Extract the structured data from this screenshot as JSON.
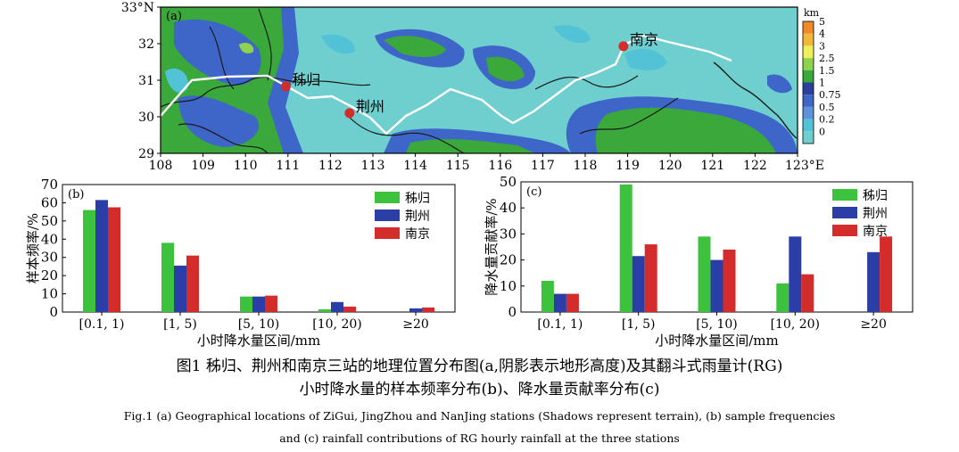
{
  "map": {
    "panel_label": "(a)",
    "lat_ticks": [
      "33°N",
      "32",
      "31",
      "30",
      "29"
    ],
    "lon_ticks": [
      "108",
      "109",
      "110",
      "111",
      "112",
      "113",
      "114",
      "115",
      "116",
      "117",
      "118",
      "119",
      "120",
      "121",
      "122",
      "123°E"
    ],
    "lon_range": [
      108,
      123
    ],
    "lat_range": [
      29,
      33
    ],
    "stations": [
      {
        "name": "秭归",
        "lon": 110.95,
        "lat": 30.83
      },
      {
        "name": "荆州",
        "lon": 112.45,
        "lat": 30.1
      },
      {
        "name": "南京",
        "lon": 118.9,
        "lat": 31.93
      }
    ],
    "colorbar": {
      "unit": "km",
      "levels": [
        "5",
        "4",
        "3",
        "2.5",
        "1.5",
        "1",
        "0.75",
        "0.5",
        "0.2",
        "0"
      ],
      "colors": [
        "#f08a28",
        "#f2b63a",
        "#eef05a",
        "#8ed34e",
        "#3aa83a",
        "#2c3f9c",
        "#3e66c8",
        "#5e93dc",
        "#52c3d6",
        "#6fcfcf"
      ]
    },
    "colors": {
      "water": "#6fcfcf",
      "low": "#52c3d6",
      "mid": "#3e66c8",
      "high": "#3aa83a",
      "peak": "#8ed34e",
      "station": "#d42b2b"
    }
  },
  "chart_data": [
    {
      "type": "bar",
      "panel_label": "(b)",
      "categories": [
        "[0.1, 1)",
        "[1, 5)",
        "[5, 10)",
        "[10, 20)",
        "≥20"
      ],
      "series": [
        {
          "name": "秭归",
          "values": [
            56,
            38,
            8.5,
            1.5,
            0
          ],
          "color": "#3cc23c"
        },
        {
          "name": "荆州",
          "values": [
            61.5,
            25.5,
            8.5,
            5.5,
            2
          ],
          "color": "#2b3ea8"
        },
        {
          "name": "南京",
          "values": [
            57.5,
            31,
            9,
            3,
            2.5
          ],
          "color": "#d42b2b"
        }
      ],
      "xlabel": "小时降水量区间/mm",
      "ylabel": "样本频率/%",
      "ylim": [
        0,
        70
      ],
      "yticks": [
        0,
        10,
        20,
        30,
        40,
        50,
        60,
        70
      ],
      "legend": "top-right",
      "grid": false
    },
    {
      "type": "bar",
      "panel_label": "(c)",
      "categories": [
        "[0.1, 1)",
        "[1, 5)",
        "[5, 10)",
        "[10, 20)",
        "≥20"
      ],
      "series": [
        {
          "name": "秭归",
          "values": [
            12,
            49,
            29,
            11,
            0
          ],
          "color": "#3cc23c"
        },
        {
          "name": "荆州",
          "values": [
            7,
            21.5,
            20,
            29,
            23
          ],
          "color": "#2b3ea8"
        },
        {
          "name": "南京",
          "values": [
            7,
            26,
            24,
            14.5,
            29
          ],
          "color": "#d42b2b"
        }
      ],
      "xlabel": "小时降水量区间/mm",
      "ylabel": "降水量贡献率/%",
      "ylim": [
        0,
        50
      ],
      "yticks": [
        0,
        10,
        20,
        30,
        40,
        50
      ],
      "legend": "top-right",
      "grid": false
    }
  ],
  "caption": {
    "zh_line1": "图1 秭归、荆州和南京三站的地理位置分布图(a,阴影表示地形高度)及其翻斗式雨量计(RG)",
    "zh_line2": "小时降水量的样本频率分布(b)、降水量贡献率分布(c)",
    "en_line1": "Fig.1 (a) Geographical locations of ZiGui, JingZhou and NanJing stations (Shadows represent terrain), (b) sample frequencies",
    "en_line2": "and (c) rainfall contributions of RG hourly rainfall at the three stations"
  }
}
